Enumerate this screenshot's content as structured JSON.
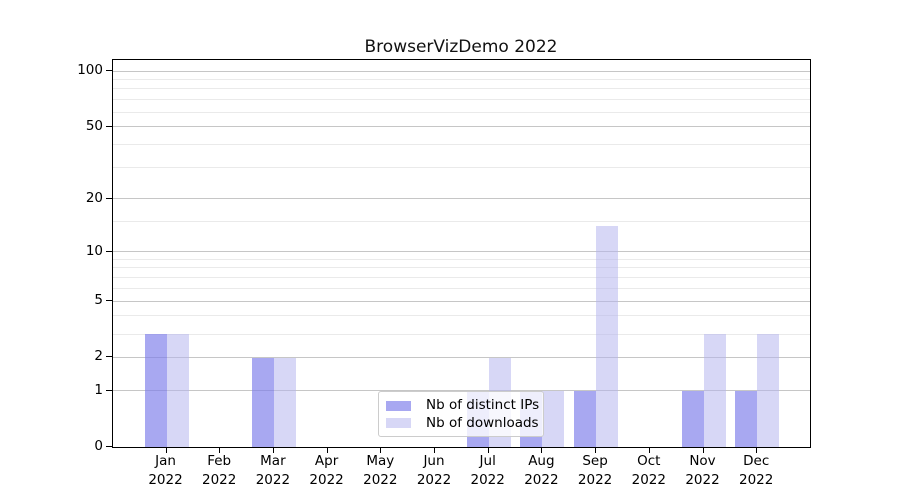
{
  "chart_data": {
    "type": "bar",
    "title": "BrowserVizDemo 2022",
    "categories": [
      "Jan",
      "Feb",
      "Mar",
      "Apr",
      "May",
      "Jun",
      "Jul",
      "Aug",
      "Sep",
      "Oct",
      "Nov",
      "Dec"
    ],
    "category_year": "2022",
    "series": [
      {
        "name": "Nb of distinct IPs",
        "values": [
          3,
          0,
          2,
          0,
          0,
          0,
          1,
          1,
          1,
          0,
          1,
          1
        ],
        "color": "#7b7bea",
        "alpha": 0.66
      },
      {
        "name": "Nb of downloads",
        "values": [
          3,
          0,
          2,
          0,
          0,
          0,
          2,
          1,
          14,
          0,
          3,
          3
        ],
        "color": "#b2b2ee",
        "alpha": 0.52
      }
    ],
    "yticks": [
      0,
      1,
      2,
      5,
      10,
      20,
      50,
      100
    ],
    "minor_yticks": [
      3,
      4,
      6,
      7,
      8,
      9,
      15,
      30,
      40,
      60,
      70,
      80,
      90
    ],
    "scale": "log10(1+x)",
    "ylim": [
      0,
      115
    ],
    "grid": true,
    "legend_position": "lower center"
  },
  "colors": {
    "bar_distinct_ips_rendered": "#a8a8f1",
    "bar_downloads_rendered": "#d7d7f7",
    "grid_major": "#c6c6c6",
    "grid_minor": "#eaeaea",
    "spine": "#000000",
    "legend_border": "#cccccc",
    "text": "#000000",
    "background": "#ffffff"
  }
}
